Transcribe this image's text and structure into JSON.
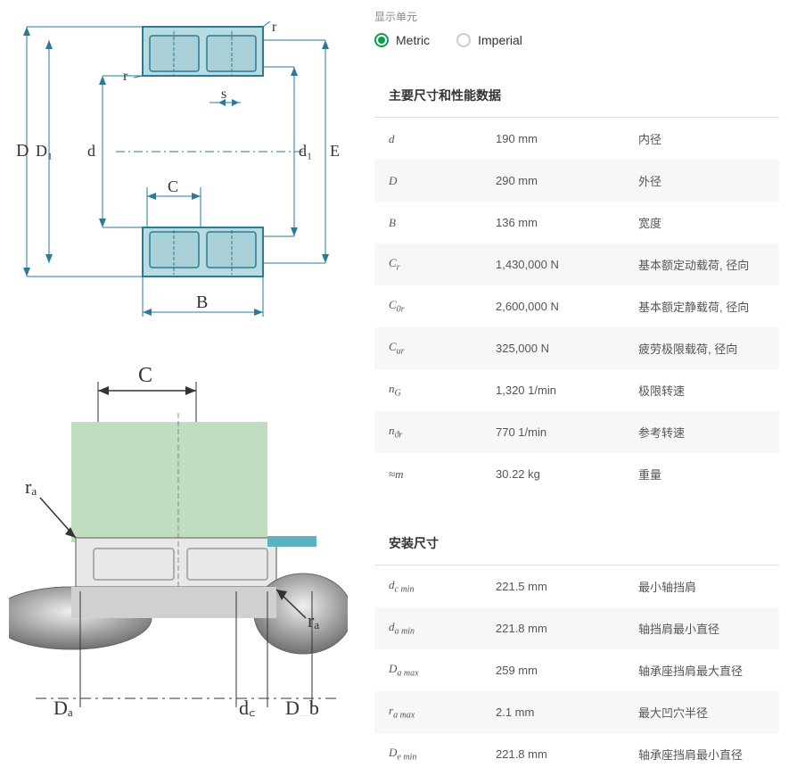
{
  "units": {
    "label": "显示单元",
    "metric": "Metric",
    "imperial": "Imperial",
    "selected": "metric"
  },
  "diagram1": {
    "labels": {
      "D": "D",
      "D1": "D₁",
      "d": "d",
      "d1": "d₁",
      "E": "E",
      "B": "B",
      "C": "C",
      "r": "r",
      "s": "s"
    },
    "colors": {
      "outline": "#2a7a9a",
      "fill": "#b8dbe0",
      "roller": "#a8d0d6",
      "centerline": "#2a7a9a"
    }
  },
  "diagram2": {
    "labels": {
      "C": "C",
      "ra1": "rₐ",
      "ra2": "rₐ",
      "Da": "Dₐ",
      "dc": "d꜀",
      "Db": "D_b"
    },
    "colors": {
      "housing": "#c0ddc0",
      "shaft_grad_light": "#e8e8e8",
      "shaft_grad_dark": "#888",
      "ring": "#5bb3c0",
      "body": "#e0e0e0"
    }
  },
  "sections": {
    "main": {
      "title": "主要尺寸和性能数据",
      "rows": [
        {
          "sym": "d",
          "val": "190 mm",
          "desc": "内径"
        },
        {
          "sym": "D",
          "val": "290 mm",
          "desc": "外径"
        },
        {
          "sym": "B",
          "val": "136 mm",
          "desc": "宽度"
        },
        {
          "sym": "C<sub>r</sub>",
          "val": "1,430,000 N",
          "desc": "基本额定动载荷, 径向"
        },
        {
          "sym": "C<sub>0r</sub>",
          "val": "2,600,000 N",
          "desc": "基本额定静载荷, 径向"
        },
        {
          "sym": "C<sub>ur</sub>",
          "val": "325,000 N",
          "desc": "疲劳极限载荷, 径向"
        },
        {
          "sym": "n<sub>G</sub>",
          "val": "1,320 1/min",
          "desc": "极限转速"
        },
        {
          "sym": "n<sub>ϑr</sub>",
          "val": "770 1/min",
          "desc": "参考转速"
        },
        {
          "sym": "≈m",
          "val": "30.22 kg",
          "desc": "重量"
        }
      ]
    },
    "mount": {
      "title": "安装尺寸",
      "rows": [
        {
          "sym": "d<sub>c min</sub>",
          "val": "221.5 mm",
          "desc": "最小轴挡肩"
        },
        {
          "sym": "d<sub>a min</sub>",
          "val": "221.8 mm",
          "desc": "轴挡肩最小直径"
        },
        {
          "sym": "D<sub>a max</sub>",
          "val": "259 mm",
          "desc": "轴承座挡肩最大直径"
        },
        {
          "sym": "r<sub>a max</sub>",
          "val": "2.1 mm",
          "desc": "最大凹穴半径"
        },
        {
          "sym": "D<sub>e min</sub>",
          "val": "221.8 mm",
          "desc": "轴承座挡肩最小直径"
        }
      ]
    }
  }
}
